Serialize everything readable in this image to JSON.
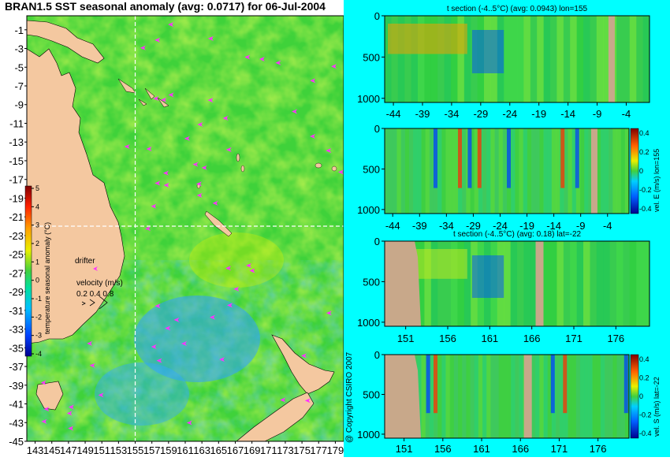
{
  "main_title": "BRAN1.5 SST seasonal anomaly (avg: 0.0717) for 06-Jul-2004",
  "copyright": "@ Copyright CSIRO 2007",
  "colors": {
    "land": "#d8b48c",
    "panel_land": "#c8a88a",
    "drifter": "#ff33ff",
    "crosshair": "#ffffff"
  },
  "map": {
    "lon_ticks": [
      143,
      145,
      147,
      149,
      151,
      153,
      155,
      157,
      159,
      161,
      163,
      165,
      167,
      169,
      171,
      173,
      175,
      177,
      179
    ],
    "lat_ticks": [
      -1,
      -3,
      -5,
      -7,
      -9,
      -11,
      -13,
      -15,
      -17,
      -19,
      -21,
      -23,
      -25,
      -27,
      -29,
      -31,
      -33,
      -35,
      -37,
      -39,
      -41,
      -43,
      -45
    ],
    "lon_range": [
      142,
      180
    ],
    "lat_range": [
      -45,
      0.5
    ],
    "crosshair": {
      "lon": 155,
      "lat": -22
    },
    "legend": {
      "drifter_label": "drifter",
      "velocity_label": "velocity (m/s)",
      "velocity_values": "0.2 0.4 0.8"
    },
    "colorbar": {
      "label": "temperature seasonal anomaly (°C)",
      "ticks": [
        5,
        4,
        3,
        2,
        1,
        0,
        -1,
        -2,
        -3,
        -4
      ],
      "range": [
        -4,
        5
      ]
    }
  },
  "chart_data": [
    {
      "type": "heatmap",
      "title": "t section (-4..5°C) (avg: 0.0943) lon=155",
      "x_ticks": [
        -44,
        -39,
        -34,
        -29,
        -24,
        -19,
        -14,
        -9,
        -4
      ],
      "y_ticks": [
        0,
        500,
        1000
      ],
      "xlim": [
        -45.5,
        0
      ],
      "ylim": [
        1050,
        0
      ]
    },
    {
      "type": "heatmap",
      "title": "",
      "side_label": "vel. E (m/s) lon=155",
      "x_ticks": [
        -44,
        -39,
        -34,
        -29,
        -24,
        -19,
        -14,
        -9,
        -4
      ],
      "y_ticks": [
        0,
        500,
        1000
      ],
      "colorbar_ticks": [
        "0.4",
        "0.2",
        "0",
        "-0.2",
        "-0.4"
      ],
      "xlim": [
        -45.5,
        0
      ],
      "ylim": [
        1050,
        0
      ]
    },
    {
      "type": "heatmap",
      "title": "t section (-4..5°C) (avg: 0.18) lat=-22",
      "x_ticks": [
        151,
        156,
        161,
        166,
        171,
        176
      ],
      "y_ticks": [
        0,
        500,
        1000
      ],
      "xlim": [
        148.5,
        180
      ],
      "ylim": [
        1050,
        0
      ]
    },
    {
      "type": "heatmap",
      "title": "",
      "side_label": "vel. S (m/s) lat=-22",
      "x_ticks": [
        151,
        156,
        161,
        166,
        171,
        176
      ],
      "y_ticks": [
        0,
        500,
        1000
      ],
      "colorbar_ticks": [
        "0.4",
        "0.2",
        "0",
        "-0.2",
        "-0.4"
      ],
      "xlim": [
        148.5,
        180
      ],
      "ylim": [
        1050,
        0
      ]
    }
  ]
}
